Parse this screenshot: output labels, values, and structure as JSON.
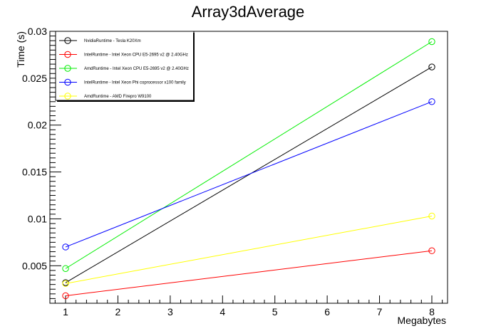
{
  "chart_data": {
    "type": "line",
    "title": "Array3dAverage",
    "xlabel": "Megabytes",
    "ylabel": "Time (s)",
    "xlim": [
      0.7,
      8.3
    ],
    "ylim": [
      0.001,
      0.03
    ],
    "x_ticks": [
      1,
      2,
      3,
      4,
      5,
      6,
      7,
      8
    ],
    "y_ticks": [
      0.005,
      0.01,
      0.015,
      0.02,
      0.025,
      0.03
    ],
    "y_tick_labels": [
      "0.005",
      "0.01",
      "0.015",
      "0.02",
      "0.025",
      "0.03"
    ],
    "legend_position": "top-left",
    "grid": false,
    "series": [
      {
        "name": "NvidiaRuntime - Tesla K20Xm",
        "color": "#000000",
        "x": [
          1,
          8
        ],
        "y": [
          0.0032,
          0.0262
        ]
      },
      {
        "name": "IntelRuntime - Intel Xeon CPU E5-2695 v2 @ 2.40GHz",
        "color": "#ff0000",
        "x": [
          1,
          8
        ],
        "y": [
          0.0018,
          0.0066
        ]
      },
      {
        "name": "AmdRuntime - Intel Xeon CPU E5-2695 v2 @ 2.40GHz",
        "color": "#00ee00",
        "x": [
          1,
          8
        ],
        "y": [
          0.0047,
          0.0289
        ]
      },
      {
        "name": "IntelRuntime - Intel Xeon Phi coprocessor x100 family",
        "color": "#0000ff",
        "x": [
          1,
          8
        ],
        "y": [
          0.007,
          0.0225
        ]
      },
      {
        "name": "AmdRuntime - AMD Firepro W9100",
        "color": "#ffff00",
        "x": [
          1,
          8
        ],
        "y": [
          0.0031,
          0.0103
        ]
      }
    ]
  }
}
